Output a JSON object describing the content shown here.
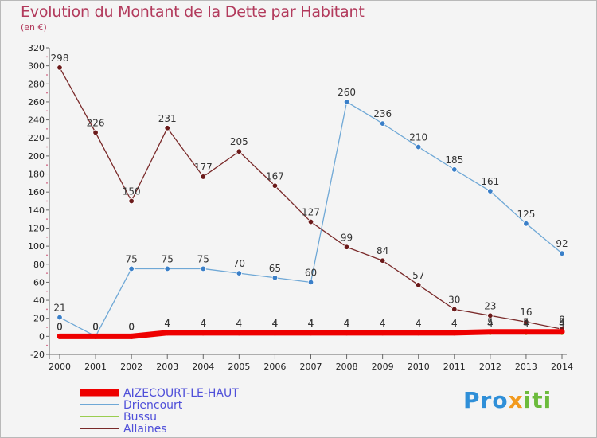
{
  "title": "Evolution du Montant de la Dette par Habitant",
  "subtitle": "(en €)",
  "logo": {
    "p1": "Pro",
    "p2": "x",
    "p3": "iti"
  },
  "colors": {
    "title": "#b23a5c",
    "legend_text": "#4f4fd9"
  },
  "chart_data": {
    "type": "line",
    "x": [
      "2000",
      "2001",
      "2002",
      "2003",
      "2004",
      "2005",
      "2006",
      "2007",
      "2008",
      "2009",
      "2010",
      "2011",
      "2012",
      "2013",
      "2014"
    ],
    "ylim": [
      -20,
      320
    ],
    "yticks": [
      -20,
      0,
      20,
      40,
      60,
      80,
      100,
      120,
      140,
      160,
      180,
      200,
      220,
      240,
      260,
      280,
      300,
      320
    ],
    "grid": false,
    "legend_position": "bottom-left",
    "series": [
      {
        "name": "AIZECOURT-LE-HAUT",
        "color": "#ee0000",
        "values": [
          0,
          0,
          0,
          4,
          4,
          4,
          4,
          4,
          4,
          4,
          4,
          4,
          5,
          5,
          5
        ],
        "labels": [
          "0",
          "0",
          "0",
          "4",
          "4",
          "4",
          "4",
          "4",
          "4",
          "4",
          "4",
          "4",
          "5",
          "5",
          "5"
        ]
      },
      {
        "name": "Driencourt",
        "color": "#6fa8d6",
        "marker": "#3a7fc8",
        "values": [
          21,
          0,
          75,
          75,
          75,
          70,
          65,
          60,
          260,
          236,
          210,
          185,
          161,
          125,
          92
        ],
        "labels": [
          "21",
          "0",
          "75",
          "75",
          "75",
          "70",
          "65",
          "60",
          "260",
          "236",
          "210",
          "185",
          "161",
          "125",
          "92"
        ]
      },
      {
        "name": "Bussu",
        "color": "#9acd50",
        "marker": "#7dc030",
        "values": [
          0,
          0,
          0,
          4,
          4,
          4,
          4,
          4,
          4,
          4,
          4,
          4,
          4,
          4,
          4
        ],
        "labels": [
          "0",
          "0",
          "0",
          "4",
          "4",
          "4",
          "4",
          "4",
          "4",
          "4",
          "4",
          "4",
          "4",
          "4",
          "4"
        ]
      },
      {
        "name": "Allaines",
        "color": "#7a2a2a",
        "marker": "#6b1a1a",
        "values": [
          298,
          226,
          150,
          231,
          177,
          205,
          167,
          127,
          99,
          84,
          57,
          30,
          23,
          16,
          8
        ],
        "labels": [
          "298",
          "226",
          "150",
          "231",
          "177",
          "205",
          "167",
          "127",
          "99",
          "84",
          "57",
          "30",
          "23",
          "16",
          "8"
        ]
      }
    ]
  }
}
